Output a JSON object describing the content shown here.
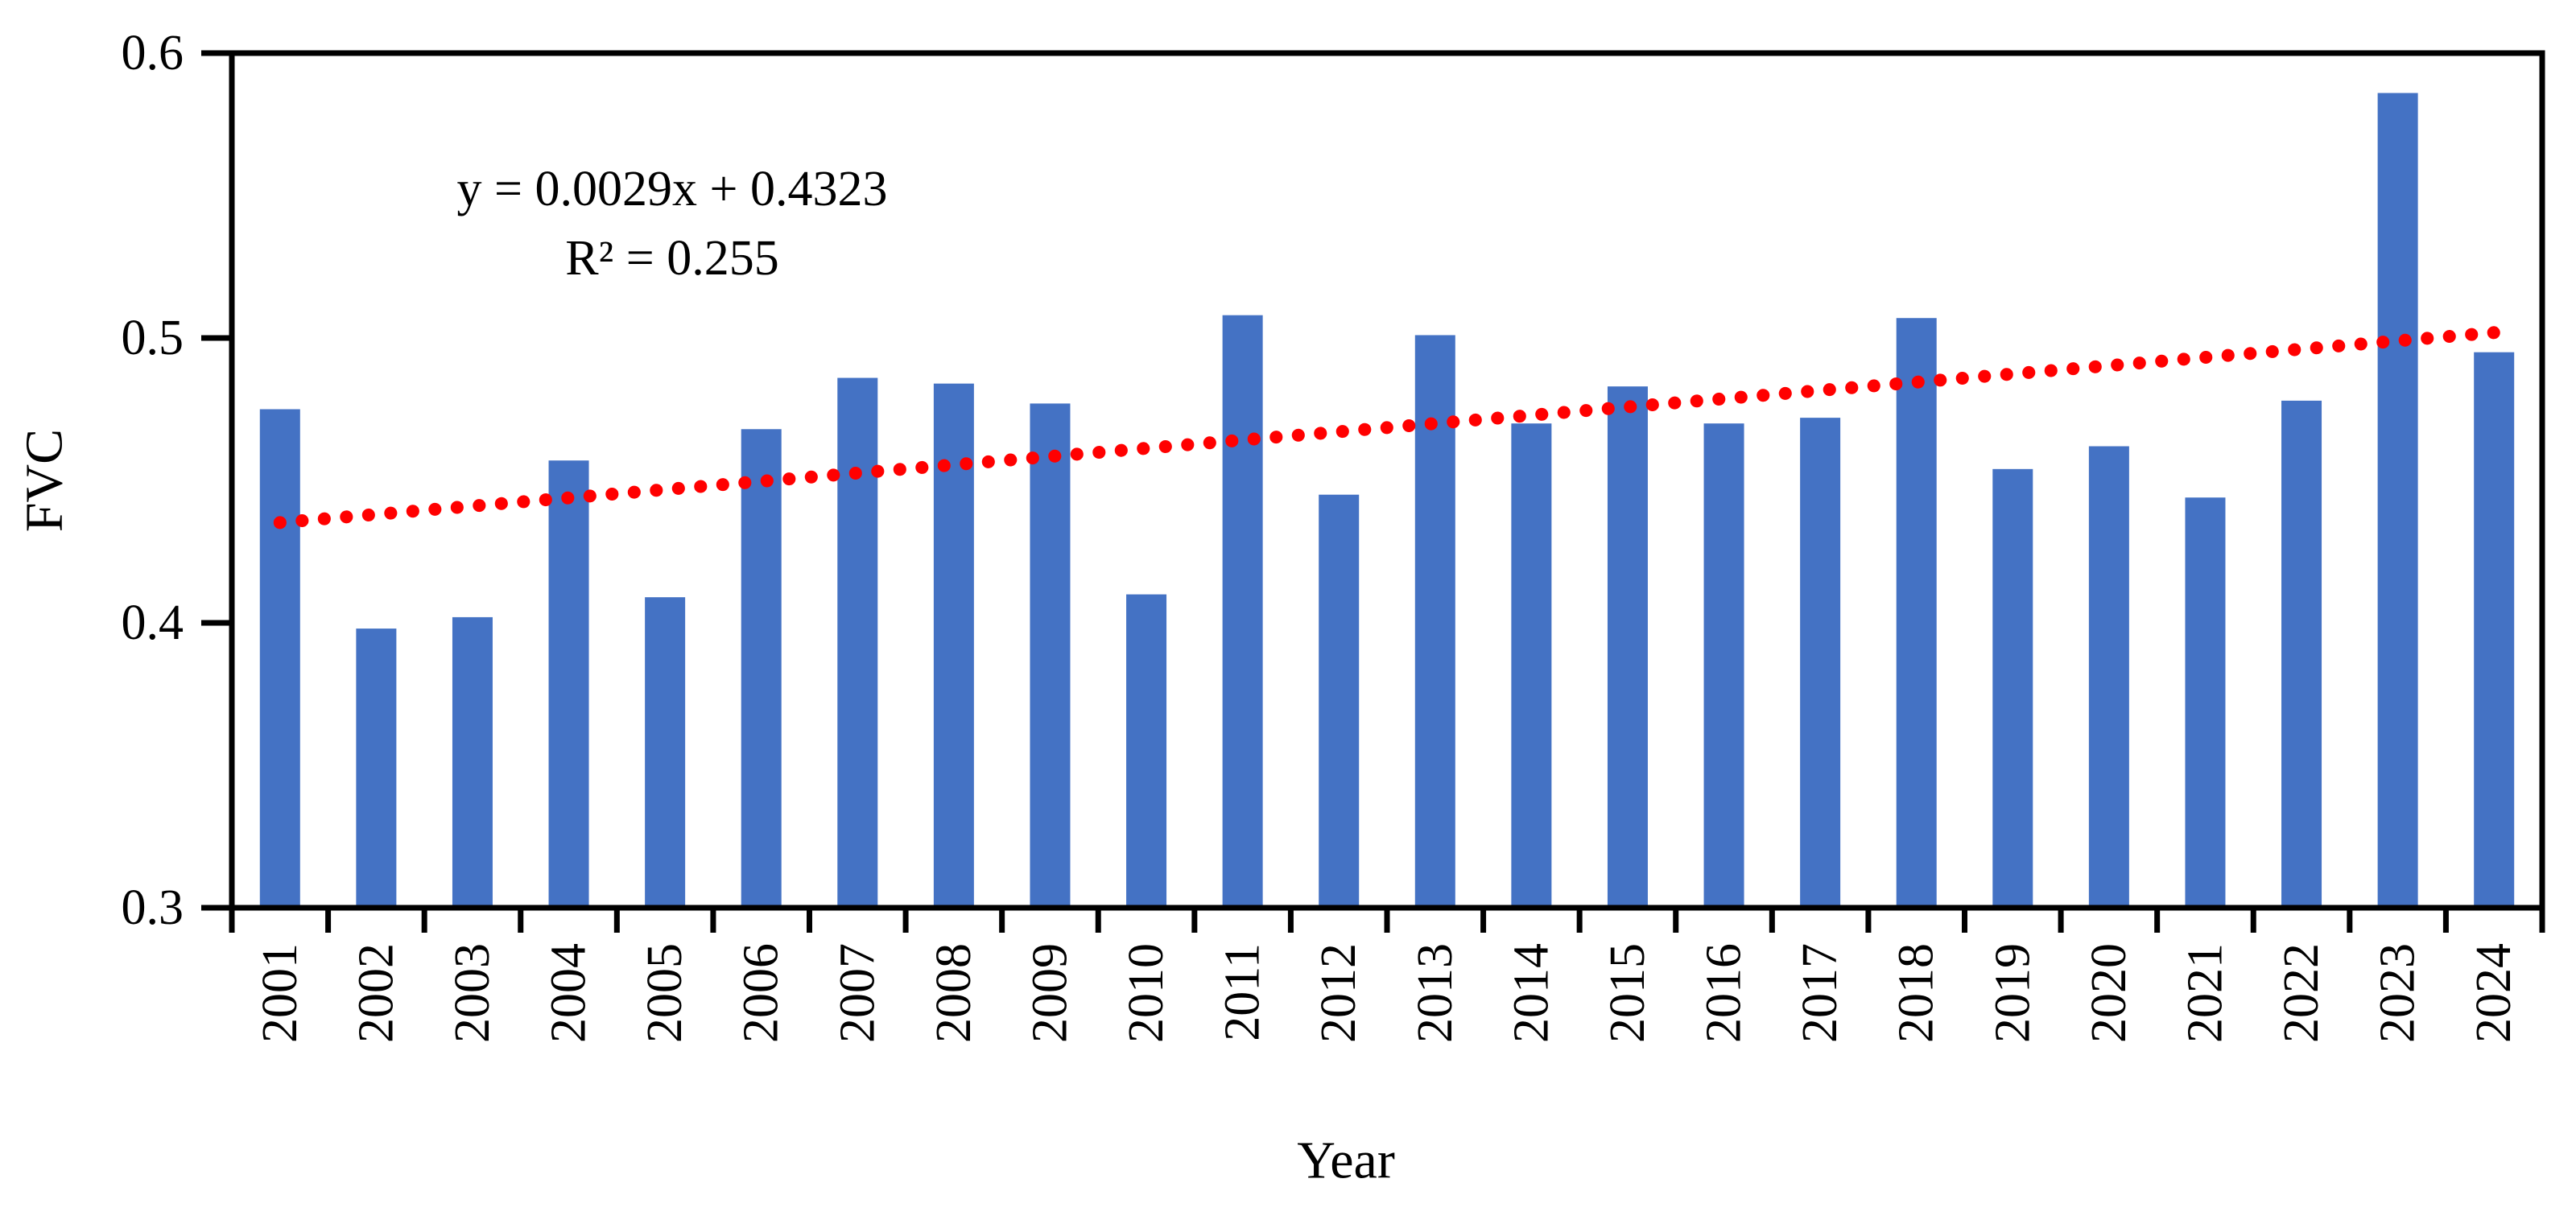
{
  "figure": {
    "equation_line1": "y = 0.0029x + 0.4323",
    "equation_line2": "R² = 0.255"
  },
  "chart_data": {
    "type": "bar",
    "title": "",
    "xlabel": "Year",
    "ylabel": "FVC",
    "categories": [
      "2001",
      "2002",
      "2003",
      "2004",
      "2005",
      "2006",
      "2007",
      "2008",
      "2009",
      "2010",
      "2011",
      "2012",
      "2013",
      "2014",
      "2015",
      "2016",
      "2017",
      "2018",
      "2019",
      "2020",
      "2021",
      "2022",
      "2023",
      "2024"
    ],
    "values": [
      0.475,
      0.398,
      0.402,
      0.457,
      0.409,
      0.468,
      0.486,
      0.484,
      0.477,
      0.41,
      0.508,
      0.445,
      0.501,
      0.47,
      0.483,
      0.47,
      0.472,
      0.507,
      0.454,
      0.462,
      0.444,
      0.478,
      0.586,
      0.495
    ],
    "ylim": [
      0.3,
      0.6
    ],
    "yticks": [
      0.6,
      0.5,
      0.4,
      0.3
    ],
    "ytick_labels": [
      "0.6",
      "0.5",
      "0.4",
      "0.3"
    ],
    "grid": false,
    "legend_position": "none",
    "bar_color": "#4472C4",
    "axis_color": "#000000",
    "trendline": {
      "type": "linear",
      "style": "dotted",
      "slope": 0.0029,
      "intercept": 0.4323,
      "r_squared": 0.255,
      "equation_label": "y = 0.0029x + 0.4323",
      "r2_label": "R² = 0.255",
      "color": "#FF0000",
      "x_range": [
        1,
        24
      ]
    }
  }
}
